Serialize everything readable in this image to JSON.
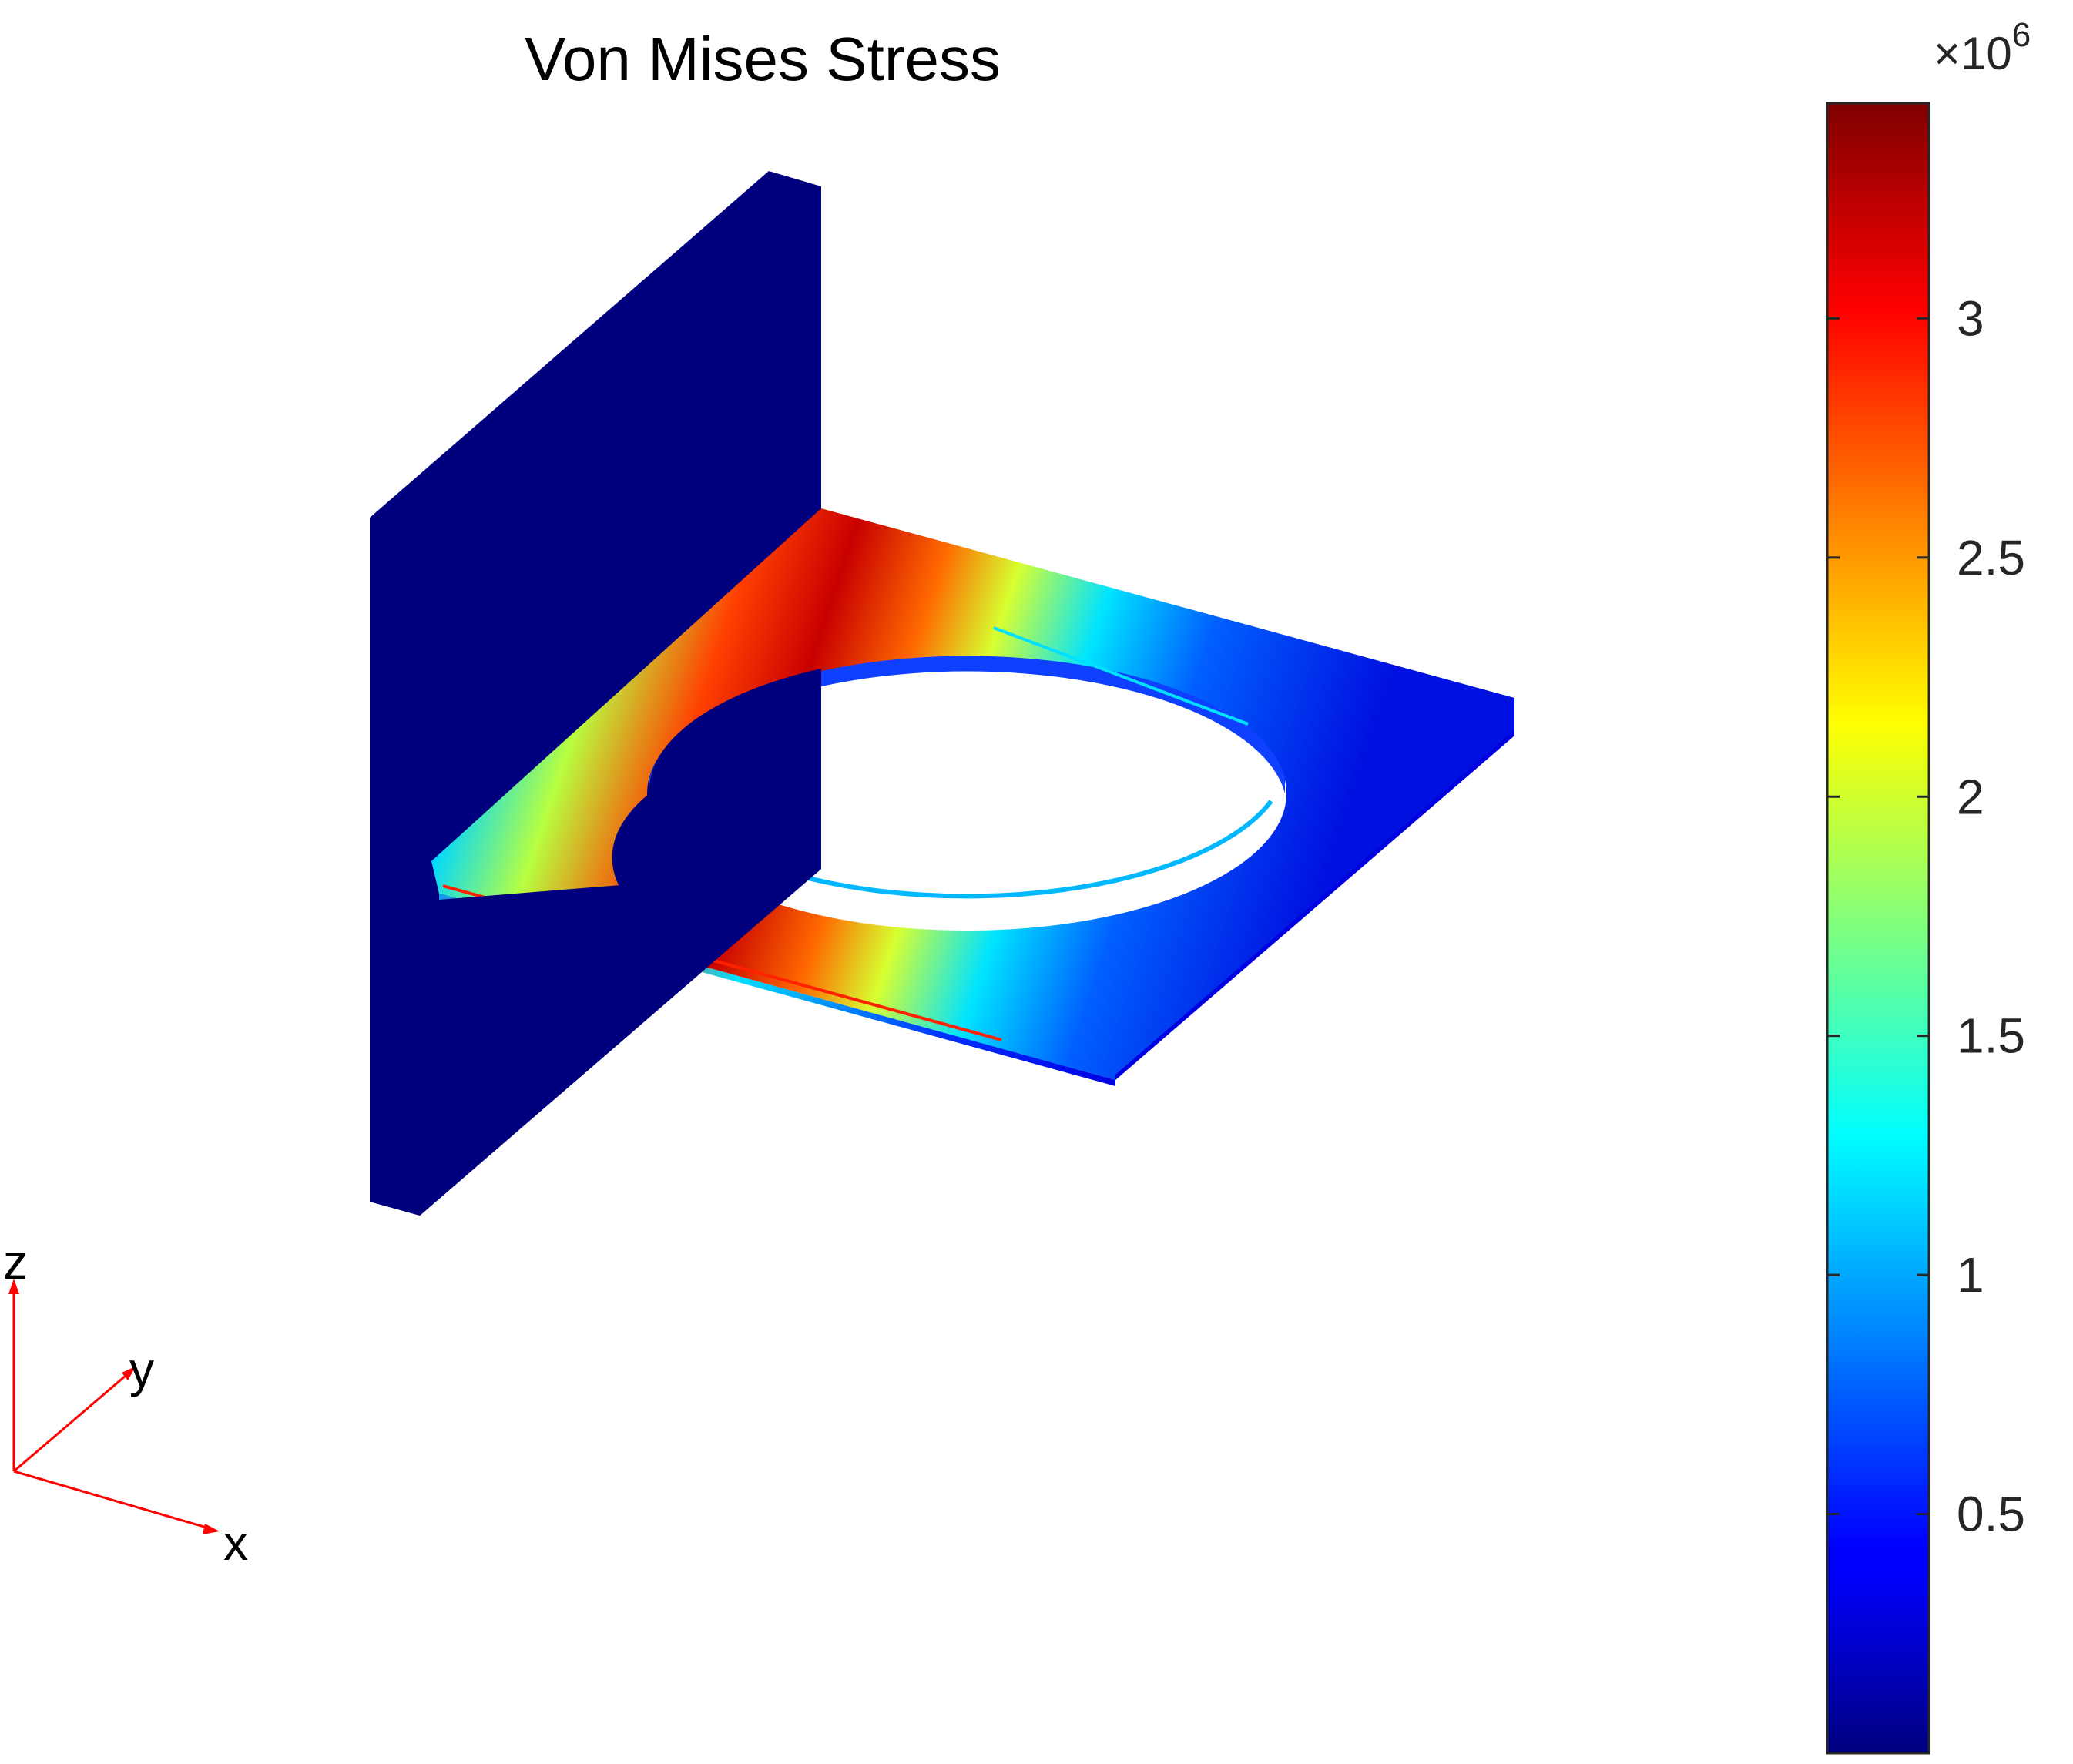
{
  "figure": {
    "title": "Von Mises Stress"
  },
  "colorbar": {
    "exponent_base": "×10",
    "exponent_power": "6",
    "ticks": [
      {
        "label": "0.5",
        "value": 500000
      },
      {
        "label": "1",
        "value": 1000000
      },
      {
        "label": "1.5",
        "value": 1500000
      },
      {
        "label": "2",
        "value": 2000000
      },
      {
        "label": "2.5",
        "value": 2500000
      },
      {
        "label": "3",
        "value": 3000000
      }
    ],
    "range": [
      0,
      3450000
    ],
    "colormap": "jet"
  },
  "axes_triad": {
    "x_label": "x",
    "y_label": "y",
    "z_label": "z",
    "color": "#ff0000"
  },
  "colors": {
    "low": "#00007f",
    "high": "#7f0000"
  }
}
